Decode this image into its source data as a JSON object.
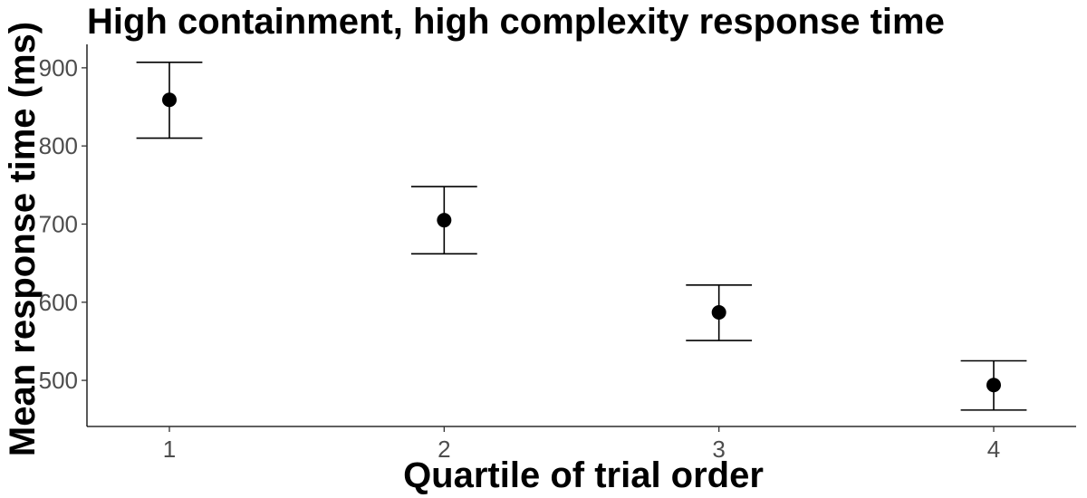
{
  "chart_data": {
    "type": "scatter",
    "title": "High containment, high complexity response time",
    "xlabel": "Quartile of trial order",
    "ylabel": "Mean response time (ms)",
    "x": [
      1,
      2,
      3,
      4
    ],
    "categories": [
      "1",
      "2",
      "3",
      "4"
    ],
    "values": [
      859,
      705,
      587,
      494
    ],
    "error_lower": [
      810,
      662,
      551,
      462
    ],
    "error_upper": [
      907,
      748,
      622,
      525
    ],
    "xlim": [
      0.7,
      4.3
    ],
    "ylim": [
      441,
      930
    ],
    "yticks": [
      500,
      600,
      700,
      800,
      900
    ],
    "grid": false,
    "legend": "none",
    "point_color": "#000000"
  }
}
